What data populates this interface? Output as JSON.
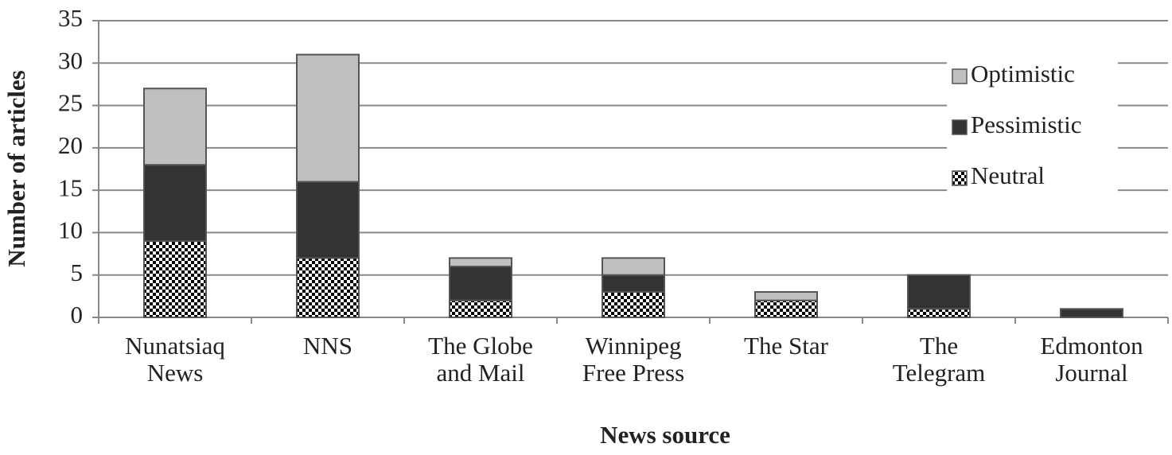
{
  "chart_data": {
    "type": "stacked_bar",
    "x_label": "News source",
    "y_label": "Number of articles",
    "categories": [
      "Nunatsiaq News",
      "NNS",
      "The Globe and Mail",
      "Winnipeg Free Press",
      "The Star",
      "The Telegram",
      "Edmonton Journal"
    ],
    "series": [
      {
        "name": "Neutral",
        "color": "#000000",
        "values": [
          9,
          7,
          2,
          3,
          2,
          1,
          0
        ]
      },
      {
        "name": "Pessimistic",
        "color": "#333333",
        "values": [
          9,
          9,
          4,
          2,
          0,
          4,
          1
        ]
      },
      {
        "name": "Optimistic",
        "color": "#c0c0c0",
        "values": [
          9,
          15,
          1,
          2,
          1,
          0,
          0
        ]
      }
    ],
    "ylim": [
      0,
      35
    ],
    "yticks": [
      0,
      5,
      10,
      15,
      20,
      25,
      30,
      35
    ],
    "grid": true,
    "legend": "upper right"
  }
}
